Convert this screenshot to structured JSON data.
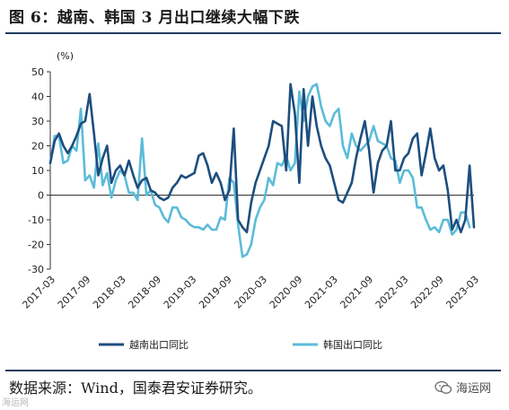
{
  "title": "图 6：越南、韩国 3 月出口继续大幅下跌",
  "source": "数据来源：Wind，国泰君安证券研究。",
  "watermark_left": "海运网",
  "watermark_right": "海运网",
  "chart_data": {
    "type": "line",
    "unit": "(%)",
    "ylim": [
      -30,
      50
    ],
    "yticks": [
      -30,
      -20,
      -10,
      0,
      10,
      20,
      30,
      40,
      50
    ],
    "grid": false,
    "legend": "bottom",
    "x_tick_labels": [
      "2017-03",
      "2017-09",
      "2018-03",
      "2018-09",
      "2019-03",
      "2019-09",
      "2020-03",
      "2020-09",
      "2021-03",
      "2021-09",
      "2022-03",
      "2022-09",
      "2023-03"
    ],
    "series": [
      {
        "name": "越南出口同比",
        "color": "#1d4e7e",
        "values": [
          13,
          22,
          25,
          20,
          17,
          20,
          24,
          29,
          30,
          41,
          25,
          8,
          15,
          20,
          5,
          10,
          12,
          8,
          14,
          8,
          3,
          6,
          7,
          2,
          1,
          -1,
          -2,
          -1,
          3,
          5,
          8,
          7,
          8,
          9,
          16,
          17,
          12,
          5,
          9,
          5,
          -2,
          2,
          27,
          -10,
          -13,
          -15,
          -3,
          5,
          10,
          15,
          20,
          30,
          29,
          28,
          10,
          45,
          33,
          5,
          43,
          20,
          40,
          28,
          20,
          15,
          12,
          5,
          -2,
          -3,
          1,
          5,
          15,
          23,
          30,
          18,
          1,
          13,
          18,
          20,
          30,
          10,
          10,
          15,
          17,
          23,
          25,
          8,
          17,
          27,
          15,
          10,
          12,
          2,
          -14,
          -10,
          -15,
          -10,
          12,
          -13
        ]
      },
      {
        "name": "韩国出口同比",
        "color": "#5bbcd8",
        "values": [
          13,
          24,
          24,
          13,
          14,
          20,
          18,
          35,
          6,
          8,
          3,
          21,
          4,
          9,
          -1,
          6,
          10,
          8,
          1,
          1,
          -2,
          23,
          0,
          2,
          -4,
          -5,
          -9,
          -11,
          -5,
          -5,
          -9,
          -10,
          -12,
          -13,
          -13,
          -14,
          -12,
          -14,
          -14,
          -9,
          -10,
          7,
          5,
          -12,
          -25,
          -24,
          -20,
          -10,
          -5,
          -2,
          7,
          4,
          13,
          12,
          16,
          10,
          13,
          42,
          30,
          40,
          44,
          45,
          36,
          30,
          28,
          33,
          35,
          20,
          15,
          25,
          20,
          18,
          20,
          22,
          28,
          22,
          21,
          20,
          15,
          14,
          5,
          10,
          10,
          7,
          -5,
          -5,
          -10,
          -14,
          -13,
          -15,
          -10,
          -10,
          -16,
          -14,
          -7,
          -7,
          -13
        ]
      }
    ]
  }
}
